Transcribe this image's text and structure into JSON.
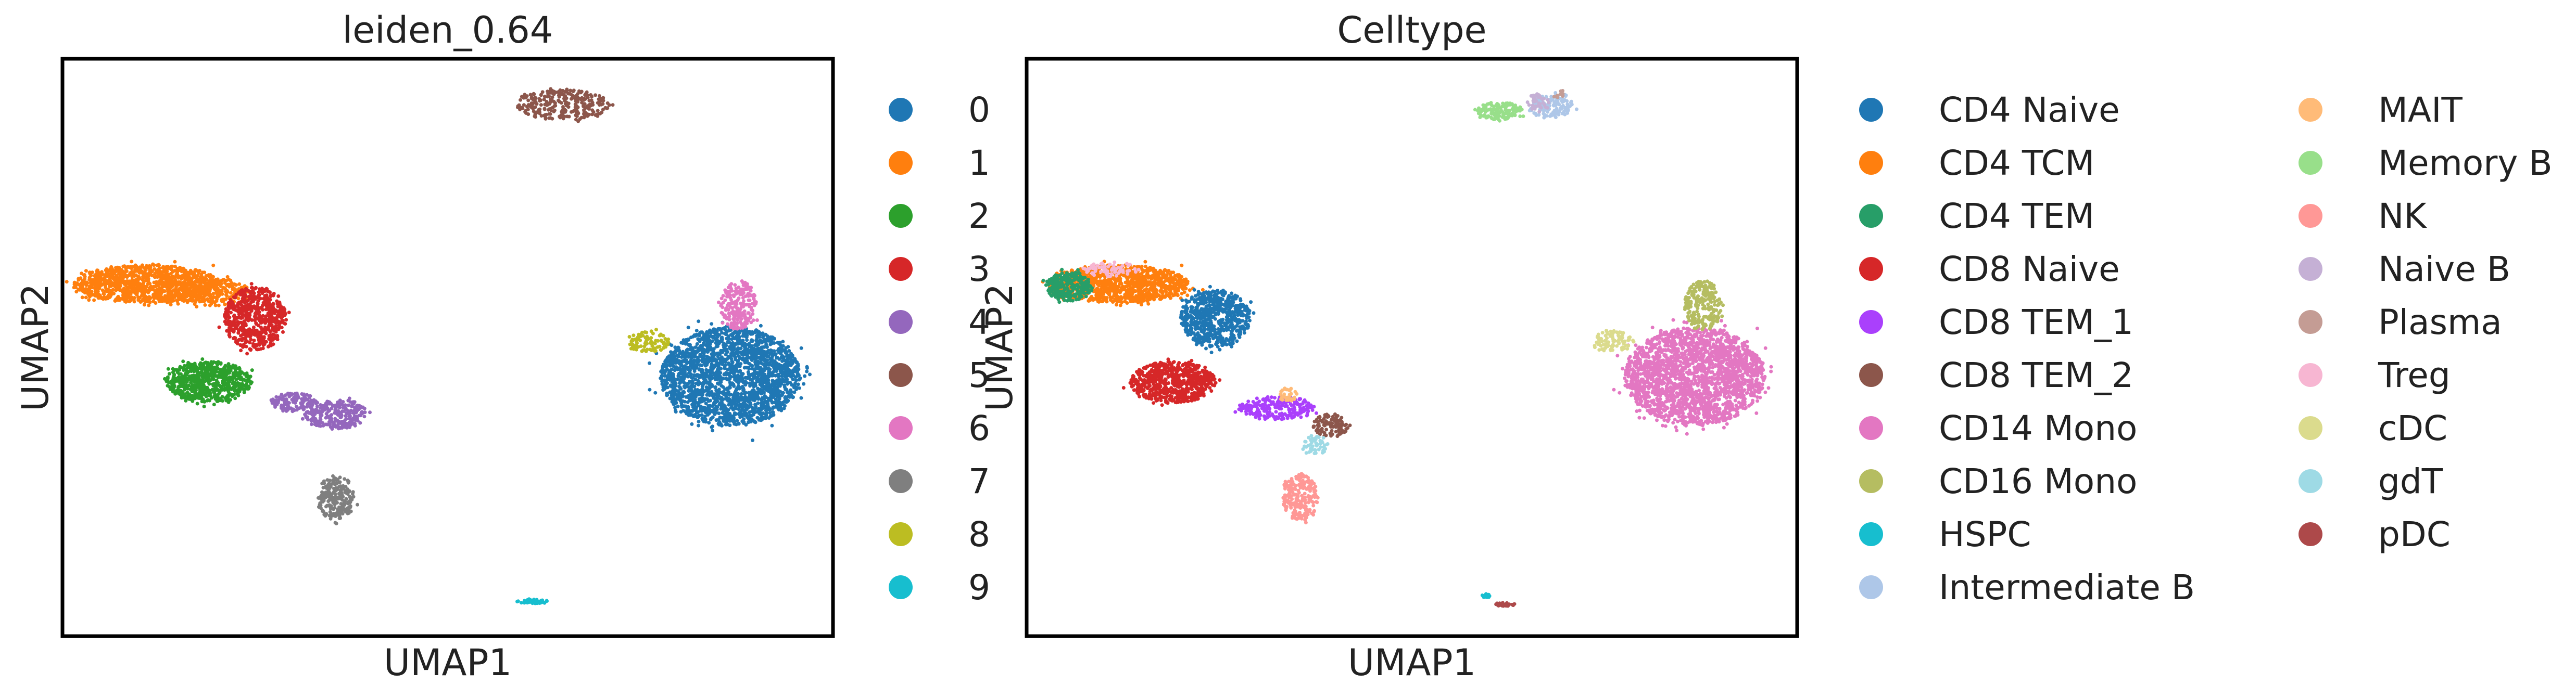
{
  "colors": {
    "tab10": [
      "#1f77b4",
      "#ff7f0e",
      "#2ca02c",
      "#d62728",
      "#9467bd",
      "#8c564b",
      "#e377c2",
      "#7f7f7f",
      "#bcbd22",
      "#17becf"
    ],
    "celltype": {
      "CD4 Naive": "#1f77b4",
      "CD4 TCM": "#ff7f0e",
      "CD4 TEM": "#279e68",
      "CD8 Naive": "#d62728",
      "CD8 TEM_1": "#aa40fc",
      "CD8 TEM_2": "#8c564b",
      "CD14 Mono": "#e377c2",
      "CD16 Mono": "#b5bd61",
      "HSPC": "#17becf",
      "Intermediate B": "#aec7e8",
      "MAIT": "#ffbb78",
      "Memory B": "#98df8a",
      "NK": "#ff9896",
      "Naive B": "#c5b0d5",
      "Plasma": "#c49c94",
      "Treg": "#f7b6d2",
      "cDC": "#dbdb8d",
      "gdT": "#9edae5",
      "pDC": "#ad494a"
    }
  },
  "chart_data": [
    {
      "type": "scatter",
      "title": "leiden_0.64",
      "xlabel": "UMAP1",
      "ylabel": "UMAP2",
      "xlim": [
        0,
        100
      ],
      "ylim": [
        0,
        100
      ],
      "grid": false,
      "legend_position": "right",
      "legend_columns": 1,
      "legend": [
        "0",
        "1",
        "2",
        "3",
        "4",
        "5",
        "6",
        "7",
        "8",
        "9"
      ],
      "clusters": [
        {
          "label": "0",
          "cx": 86.7,
          "cy": 45.0,
          "rx": 9.0,
          "ry": 8.5,
          "n": 2200
        },
        {
          "label": "1",
          "cx": 11.0,
          "cy": 61.0,
          "rx": 9.5,
          "ry": 3.3,
          "n": 1100
        },
        {
          "label": "1",
          "cx": 19.5,
          "cy": 59.5,
          "rx": 5.0,
          "ry": 2.4,
          "n": 250
        },
        {
          "label": "2",
          "cx": 19.0,
          "cy": 44.0,
          "rx": 5.5,
          "ry": 3.6,
          "n": 650
        },
        {
          "label": "3",
          "cx": 25.0,
          "cy": 55.0,
          "rx": 4.0,
          "ry": 5.5,
          "n": 600
        },
        {
          "label": "4",
          "cx": 35.5,
          "cy": 38.5,
          "rx": 4.0,
          "ry": 2.6,
          "n": 250
        },
        {
          "label": "4",
          "cx": 30.0,
          "cy": 40.5,
          "rx": 3.0,
          "ry": 1.6,
          "n": 130
        },
        {
          "label": "5",
          "cx": 65.0,
          "cy": 92.0,
          "rx": 6.0,
          "ry": 2.6,
          "n": 280
        },
        {
          "label": "6",
          "cx": 87.8,
          "cy": 57.3,
          "rx": 2.4,
          "ry": 4.3,
          "n": 220
        },
        {
          "label": "7",
          "cx": 35.5,
          "cy": 24.0,
          "rx": 2.3,
          "ry": 4.0,
          "n": 220
        },
        {
          "label": "8",
          "cx": 76.0,
          "cy": 51.0,
          "rx": 2.8,
          "ry": 1.8,
          "n": 90
        },
        {
          "label": "9",
          "cx": 61.0,
          "cy": 6.0,
          "rx": 2.1,
          "ry": 0.35,
          "n": 45
        }
      ]
    },
    {
      "type": "scatter",
      "title": "Celltype",
      "xlabel": "UMAP1",
      "ylabel": "UMAP2",
      "xlim": [
        0,
        100
      ],
      "ylim": [
        0,
        100
      ],
      "grid": false,
      "legend_position": "right",
      "legend_columns": 2,
      "legend": [
        "CD4 Naive",
        "CD4 TCM",
        "CD4 TEM",
        "CD8 Naive",
        "CD8 TEM_1",
        "CD8 TEM_2",
        "CD14 Mono",
        "CD16 Mono",
        "HSPC",
        "Intermediate B",
        "MAIT",
        "Memory B",
        "NK",
        "Naive B",
        "Plasma",
        "Treg",
        "cDC",
        "gdT",
        "pDC"
      ],
      "clusters": [
        {
          "label": "CD14 Mono",
          "cx": 86.7,
          "cy": 45.0,
          "rx": 9.0,
          "ry": 8.5,
          "n": 2200
        },
        {
          "label": "CD16 Mono",
          "cx": 87.8,
          "cy": 57.3,
          "rx": 2.4,
          "ry": 4.3,
          "n": 220
        },
        {
          "label": "cDC",
          "cx": 76.0,
          "cy": 51.0,
          "rx": 2.8,
          "ry": 1.8,
          "n": 90
        },
        {
          "label": "CD4 TCM",
          "cx": 12.0,
          "cy": 61.0,
          "rx": 9.0,
          "ry": 3.3,
          "n": 1100
        },
        {
          "label": "CD4 TEM",
          "cx": 5.5,
          "cy": 60.5,
          "rx": 3.0,
          "ry": 2.6,
          "n": 260
        },
        {
          "label": "Treg",
          "cx": 11.0,
          "cy": 63.5,
          "rx": 3.5,
          "ry": 1.3,
          "n": 70
        },
        {
          "label": "CD4 Naive",
          "cx": 24.5,
          "cy": 55.0,
          "rx": 4.5,
          "ry": 5.0,
          "n": 650
        },
        {
          "label": "CD8 Naive",
          "cx": 19.0,
          "cy": 44.0,
          "rx": 5.5,
          "ry": 3.6,
          "n": 650
        },
        {
          "label": "CD8 TEM_1",
          "cx": 32.5,
          "cy": 39.5,
          "rx": 5.0,
          "ry": 2.0,
          "n": 230
        },
        {
          "label": "CD8 TEM_2",
          "cx": 39.5,
          "cy": 36.5,
          "rx": 2.3,
          "ry": 2.0,
          "n": 100
        },
        {
          "label": "MAIT",
          "cx": 33.8,
          "cy": 41.8,
          "rx": 1.3,
          "ry": 1.2,
          "n": 30
        },
        {
          "label": "gdT",
          "cx": 37.5,
          "cy": 33.0,
          "rx": 2.0,
          "ry": 1.6,
          "n": 50
        },
        {
          "label": "NK",
          "cx": 35.5,
          "cy": 24.0,
          "rx": 2.3,
          "ry": 4.0,
          "n": 220
        },
        {
          "label": "Memory B",
          "cx": 61.5,
          "cy": 91.0,
          "rx": 3.0,
          "ry": 1.6,
          "n": 140
        },
        {
          "label": "Intermediate B",
          "cx": 68.0,
          "cy": 92.0,
          "rx": 2.8,
          "ry": 2.4,
          "n": 140
        },
        {
          "label": "Naive B",
          "cx": 66.5,
          "cy": 92.5,
          "rx": 1.5,
          "ry": 1.5,
          "n": 40
        },
        {
          "label": "Plasma",
          "cx": 69.0,
          "cy": 94.0,
          "rx": 0.8,
          "ry": 0.8,
          "n": 10
        },
        {
          "label": "HSPC",
          "cx": 59.5,
          "cy": 7.0,
          "rx": 0.8,
          "ry": 0.3,
          "n": 15
        },
        {
          "label": "pDC",
          "cx": 62.0,
          "cy": 5.5,
          "rx": 1.4,
          "ry": 0.3,
          "n": 30
        }
      ]
    }
  ]
}
